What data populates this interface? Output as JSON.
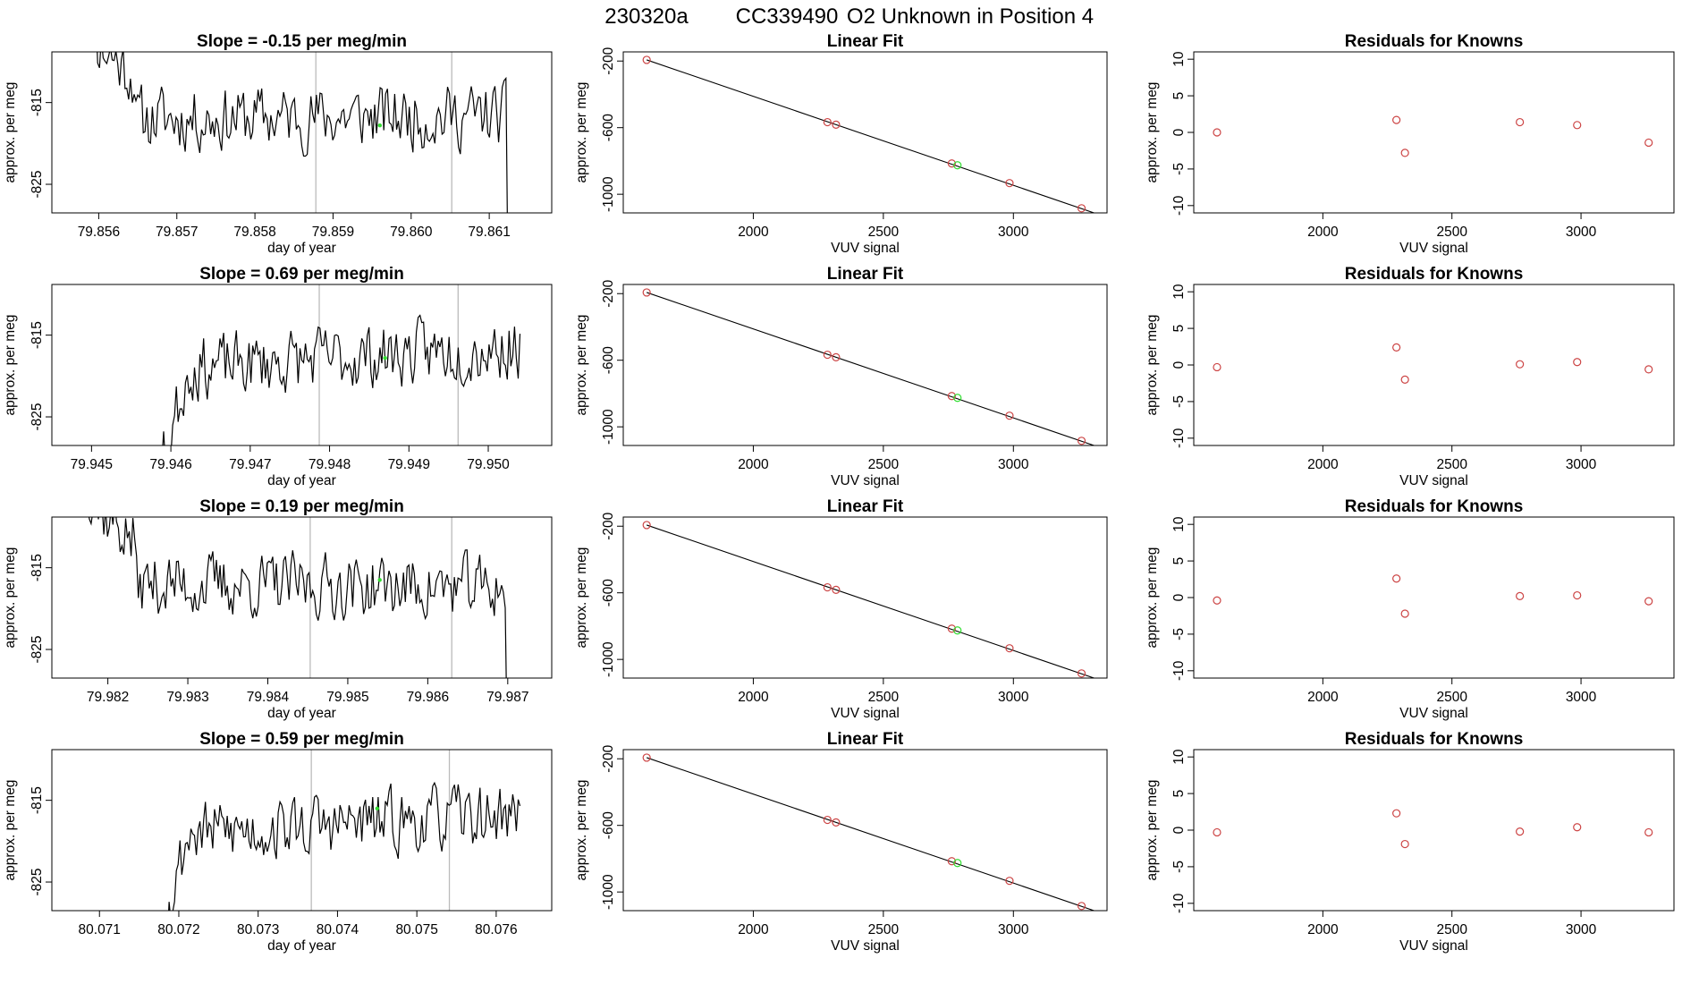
{
  "figure_title": {
    "run_id": "230320a",
    "tank_id": "CC339490",
    "description": "O2 Unknown in Position  4"
  },
  "chart_data": [
    {
      "type": "line",
      "panel": "timeseries",
      "row": 0,
      "title": "Slope =  -0.15  per meg/min",
      "xlabel": "day of year",
      "ylabel": "approx. per meg",
      "xlim": [
        79.8554,
        79.8618
      ],
      "ylim": [
        -828.5,
        -808.8
      ],
      "xticks": [
        "79.856",
        "79.857",
        "79.858",
        "79.859",
        "79.860",
        "79.861"
      ],
      "yticks": [
        "-815",
        "-825"
      ],
      "vlines": [
        79.85878,
        79.86052
      ],
      "marker": [
        79.8596,
        -817.8
      ],
      "seed": 11,
      "trend": -0.15
    },
    {
      "type": "line",
      "panel": "timeseries",
      "row": 1,
      "title": "Slope =  0.69  per meg/min",
      "xlabel": "day of year",
      "ylabel": "approx. per meg",
      "xlim": [
        79.9445,
        79.9508
      ],
      "ylim": [
        -828.5,
        -808.8
      ],
      "xticks": [
        "79.945",
        "79.946",
        "79.947",
        "79.948",
        "79.949",
        "79.950"
      ],
      "yticks": [
        "-815",
        "-825"
      ],
      "vlines": [
        79.94787,
        79.94962
      ],
      "marker": [
        79.9487,
        -817.8
      ],
      "seed": 23,
      "trend": 0.69
    },
    {
      "type": "line",
      "panel": "timeseries",
      "row": 2,
      "title": "Slope =  0.19  per meg/min",
      "xlabel": "day of year",
      "ylabel": "approx. per meg",
      "xlim": [
        79.9813,
        79.98755
      ],
      "ylim": [
        -828.5,
        -808.8
      ],
      "xticks": [
        "79.982",
        "79.983",
        "79.984",
        "79.985",
        "79.986",
        "79.987"
      ],
      "yticks": [
        "-815",
        "-825"
      ],
      "vlines": [
        79.98453,
        79.9863
      ],
      "marker": [
        79.9854,
        -816.5
      ],
      "seed": 37,
      "trend": 0.19
    },
    {
      "type": "line",
      "panel": "timeseries",
      "row": 3,
      "title": "Slope =  0.59  per meg/min",
      "xlabel": "day of year",
      "ylabel": "approx. per meg",
      "xlim": [
        80.0704,
        80.0767
      ],
      "ylim": [
        -828.5,
        -808.8
      ],
      "xticks": [
        "80.071",
        "80.072",
        "80.073",
        "80.074",
        "80.075",
        "80.076"
      ],
      "yticks": [
        "-815",
        "-825"
      ],
      "vlines": [
        80.07367,
        80.07541
      ],
      "marker": [
        80.0745,
        -816.0
      ],
      "seed": 53,
      "trend": 0.59
    },
    {
      "type": "scatter",
      "panel": "fit",
      "row": 0,
      "title": "Linear Fit",
      "xlabel": "VUV signal",
      "ylabel": "approx. per meg",
      "xlim": [
        1500,
        3360
      ],
      "ylim": [
        -1112,
        -145
      ],
      "xticks": [
        "2000",
        "2500",
        "3000"
      ],
      "yticks": [
        "-200",
        "-600",
        "-1000"
      ],
      "fit_line": [
        [
          1590,
          -193
        ],
        [
          3310,
          -1112
        ]
      ],
      "points": [
        [
          1590,
          -193
        ],
        [
          2285,
          -567
        ],
        [
          2318,
          -582
        ],
        [
          2763,
          -815
        ],
        [
          2985,
          -933
        ],
        [
          3262,
          -1084
        ]
      ],
      "unknown": [
        [
          2785,
          -826
        ]
      ]
    },
    {
      "type": "scatter",
      "panel": "fit",
      "row": 1,
      "title": "Linear Fit",
      "xlabel": "VUV signal",
      "ylabel": "approx. per meg",
      "xlim": [
        1500,
        3360
      ],
      "ylim": [
        -1112,
        -145
      ],
      "xticks": [
        "2000",
        "2500",
        "3000"
      ],
      "yticks": [
        "-200",
        "-600",
        "-1000"
      ],
      "fit_line": [
        [
          1590,
          -193
        ],
        [
          3310,
          -1112
        ]
      ],
      "points": [
        [
          1590,
          -193
        ],
        [
          2285,
          -567
        ],
        [
          2318,
          -582
        ],
        [
          2763,
          -815
        ],
        [
          2985,
          -933
        ],
        [
          3262,
          -1084
        ]
      ],
      "unknown": [
        [
          2785,
          -826
        ]
      ]
    },
    {
      "type": "scatter",
      "panel": "fit",
      "row": 2,
      "title": "Linear Fit",
      "xlabel": "VUV signal",
      "ylabel": "approx. per meg",
      "xlim": [
        1500,
        3360
      ],
      "ylim": [
        -1112,
        -145
      ],
      "xticks": [
        "2000",
        "2500",
        "3000"
      ],
      "yticks": [
        "-200",
        "-600",
        "-1000"
      ],
      "fit_line": [
        [
          1590,
          -193
        ],
        [
          3310,
          -1112
        ]
      ],
      "points": [
        [
          1590,
          -193
        ],
        [
          2285,
          -567
        ],
        [
          2318,
          -582
        ],
        [
          2763,
          -815
        ],
        [
          2985,
          -933
        ],
        [
          3262,
          -1084
        ]
      ],
      "unknown": [
        [
          2785,
          -826
        ]
      ]
    },
    {
      "type": "scatter",
      "panel": "fit",
      "row": 3,
      "title": "Linear Fit",
      "xlabel": "VUV signal",
      "ylabel": "approx. per meg",
      "xlim": [
        1500,
        3360
      ],
      "ylim": [
        -1112,
        -145
      ],
      "xticks": [
        "2000",
        "2500",
        "3000"
      ],
      "yticks": [
        "-200",
        "-600",
        "-1000"
      ],
      "fit_line": [
        [
          1590,
          -193
        ],
        [
          3310,
          -1112
        ]
      ],
      "points": [
        [
          1590,
          -193
        ],
        [
          2285,
          -567
        ],
        [
          2318,
          -582
        ],
        [
          2763,
          -815
        ],
        [
          2985,
          -933
        ],
        [
          3262,
          -1084
        ]
      ],
      "unknown": [
        [
          2785,
          -826
        ]
      ]
    },
    {
      "type": "scatter",
      "panel": "residuals",
      "row": 0,
      "title": "Residuals for Knowns",
      "xlabel": "VUV signal",
      "ylabel": "approx. per meg",
      "xlim": [
        1500,
        3360
      ],
      "ylim": [
        -11,
        11
      ],
      "xticks": [
        "2000",
        "2500",
        "3000"
      ],
      "yticks": [
        "10",
        "5",
        "0",
        "-5",
        "-10"
      ],
      "points": [
        [
          1590,
          0.0
        ],
        [
          2285,
          1.7
        ],
        [
          2318,
          -2.8
        ],
        [
          2763,
          1.4
        ],
        [
          2985,
          1.0
        ],
        [
          3262,
          -1.4
        ]
      ]
    },
    {
      "type": "scatter",
      "panel": "residuals",
      "row": 1,
      "title": "Residuals for Knowns",
      "xlabel": "VUV signal",
      "ylabel": "approx. per meg",
      "xlim": [
        1500,
        3360
      ],
      "ylim": [
        -11,
        11
      ],
      "xticks": [
        "2000",
        "2500",
        "3000"
      ],
      "yticks": [
        "10",
        "5",
        "0",
        "-5",
        "-10"
      ],
      "points": [
        [
          1590,
          -0.3
        ],
        [
          2285,
          2.4
        ],
        [
          2318,
          -2.0
        ],
        [
          2763,
          0.1
        ],
        [
          2985,
          0.4
        ],
        [
          3262,
          -0.6
        ]
      ]
    },
    {
      "type": "scatter",
      "panel": "residuals",
      "row": 2,
      "title": "Residuals for Knowns",
      "xlabel": "VUV signal",
      "ylabel": "approx. per meg",
      "xlim": [
        1500,
        3360
      ],
      "ylim": [
        -11,
        11
      ],
      "xticks": [
        "2000",
        "2500",
        "3000"
      ],
      "yticks": [
        "10",
        "5",
        "0",
        "-5",
        "-10"
      ],
      "points": [
        [
          1590,
          -0.4
        ],
        [
          2285,
          2.6
        ],
        [
          2318,
          -2.2
        ],
        [
          2763,
          0.2
        ],
        [
          2985,
          0.3
        ],
        [
          3262,
          -0.5
        ]
      ]
    },
    {
      "type": "scatter",
      "panel": "residuals",
      "row": 3,
      "title": "Residuals for Knowns",
      "xlabel": "VUV signal",
      "ylabel": "approx. per meg",
      "xlim": [
        1500,
        3360
      ],
      "ylim": [
        -11,
        11
      ],
      "xticks": [
        "2000",
        "2500",
        "3000"
      ],
      "yticks": [
        "10",
        "5",
        "0",
        "-5",
        "-10"
      ],
      "points": [
        [
          1590,
          -0.3
        ],
        [
          2285,
          2.3
        ],
        [
          2318,
          -1.9
        ],
        [
          2763,
          -0.2
        ],
        [
          2985,
          0.4
        ],
        [
          3262,
          -0.3
        ]
      ]
    }
  ],
  "colors": {
    "series": "#000000",
    "known_point": "#cc4444",
    "unknown_point": "#33dd33",
    "vline": "#bbbbbb",
    "fit_line": "#000000"
  }
}
